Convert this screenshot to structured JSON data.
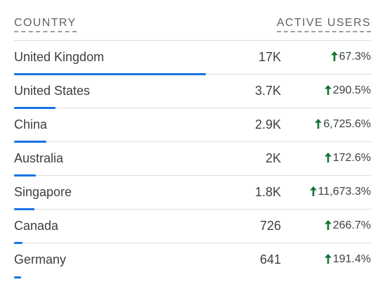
{
  "header": {
    "country_label": "COUNTRY",
    "users_label": "ACTIVE USERS"
  },
  "colors": {
    "bar": "#1a73e8",
    "up": "#137333"
  },
  "rows": [
    {
      "country": "United Kingdom",
      "users": "17K",
      "change": "67.3%",
      "share": 1.0
    },
    {
      "country": "United States",
      "users": "3.7K",
      "change": "290.5%",
      "share": 0.217
    },
    {
      "country": "China",
      "users": "2.9K",
      "change": "6,725.6%",
      "share": 0.17
    },
    {
      "country": "Australia",
      "users": "2K",
      "change": "172.6%",
      "share": 0.115
    },
    {
      "country": "Singapore",
      "users": "1.8K",
      "change": "11,673.3%",
      "share": 0.105
    },
    {
      "country": "Canada",
      "users": "726",
      "change": "266.7%",
      "share": 0.043
    },
    {
      "country": "Germany",
      "users": "641",
      "change": "191.4%",
      "share": 0.038
    }
  ]
}
